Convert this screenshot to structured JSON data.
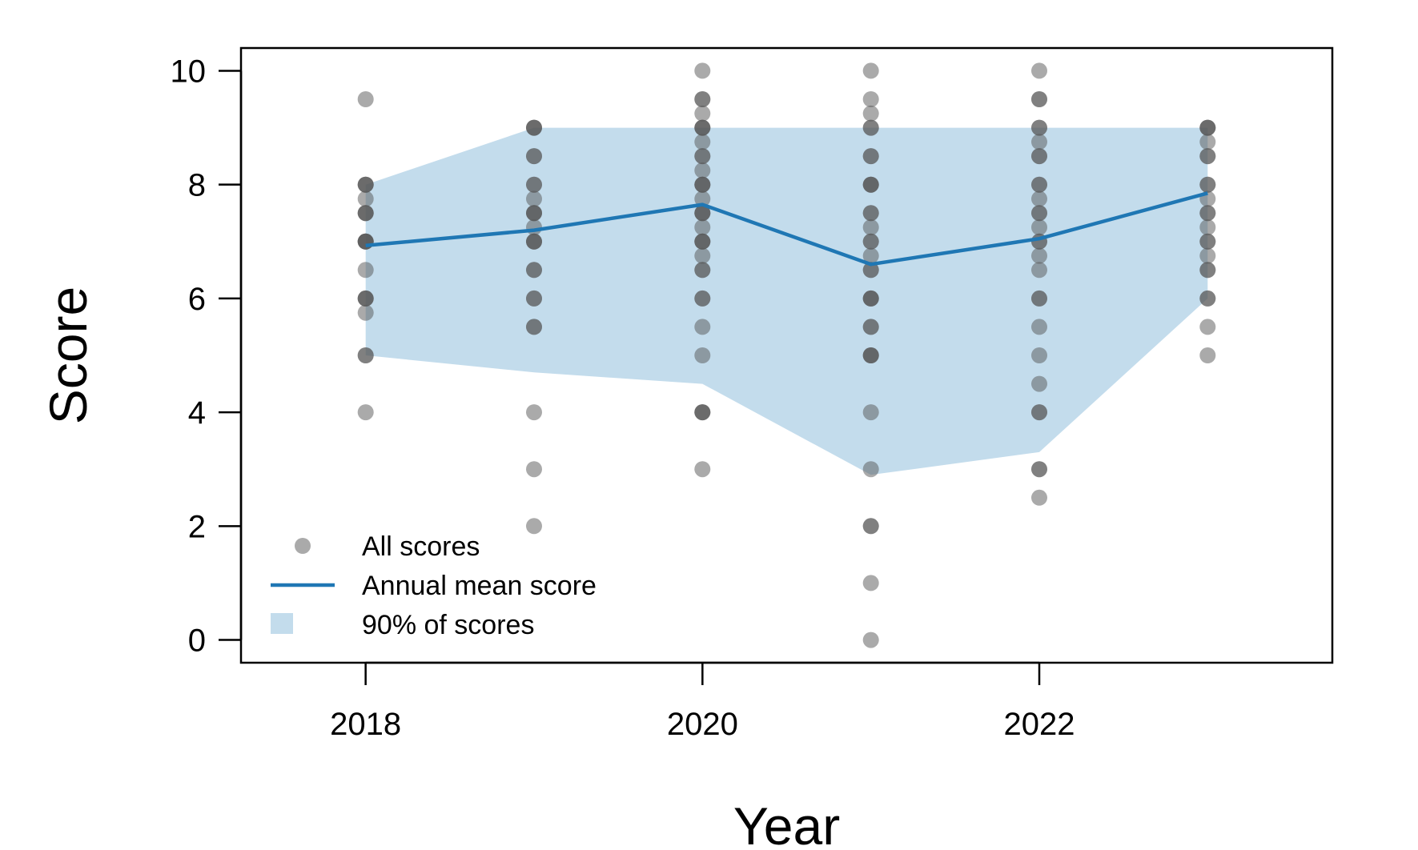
{
  "chart_data": {
    "type": "scatter",
    "xlabel": "Year",
    "ylabel": "Score",
    "xlim": [
      2017.26,
      2023.74
    ],
    "ylim": [
      -0.4,
      10.4
    ],
    "x_ticks": [
      2018,
      2020,
      2022
    ],
    "y_ticks": [
      0,
      2,
      4,
      6,
      8,
      10
    ],
    "grid": false,
    "legend_position": "bottom-left",
    "colors": {
      "points": "#555555",
      "mean_line": "#1f77b4",
      "band": "#c3dcec"
    },
    "legend": [
      {
        "label": "All scores",
        "kind": "point"
      },
      {
        "label": "Annual mean score",
        "kind": "line"
      },
      {
        "label": "90% of scores",
        "kind": "band"
      }
    ],
    "series": [
      {
        "name": "Annual mean score",
        "kind": "line",
        "x": [
          2018,
          2019,
          2020,
          2021,
          2022,
          2023
        ],
        "y": [
          6.93,
          7.2,
          7.65,
          6.6,
          7.05,
          7.85
        ]
      },
      {
        "name": "90% of scores",
        "kind": "band",
        "x": [
          2018,
          2019,
          2020,
          2021,
          2022,
          2023
        ],
        "lower": [
          5.0,
          4.7,
          4.5,
          2.9,
          3.3,
          6.0
        ],
        "upper": [
          8.0,
          9.0,
          9.0,
          9.0,
          9.0,
          9.0
        ]
      },
      {
        "name": "All scores",
        "kind": "points",
        "points": [
          {
            "x": 2018,
            "y": [
              9.5,
              8,
              8,
              8,
              7.75,
              7.5,
              7.5,
              7.5,
              7,
              7,
              7,
              7,
              6.5,
              6,
              6,
              6,
              5.75,
              5,
              5,
              4
            ]
          },
          {
            "x": 2019,
            "y": [
              9,
              9,
              9,
              8.5,
              8.5,
              8,
              8,
              7.75,
              7.5,
              7.5,
              7.5,
              7.25,
              7,
              7,
              7,
              6.5,
              6.5,
              6,
              6,
              5.5,
              5.5,
              4,
              3,
              2
            ]
          },
          {
            "x": 2020,
            "y": [
              10,
              9.5,
              9.5,
              9.25,
              9,
              9,
              9,
              8.75,
              8.5,
              8.5,
              8.25,
              8,
              8,
              8,
              7.75,
              7.5,
              7.5,
              7.5,
              7.25,
              7,
              7,
              7,
              6.75,
              6.5,
              6.5,
              6,
              6,
              5.5,
              5,
              4,
              4,
              4,
              3
            ]
          },
          {
            "x": 2021,
            "y": [
              10,
              9.5,
              9.25,
              9,
              9,
              8.5,
              8.5,
              8,
              8,
              8,
              7.5,
              7.5,
              7.25,
              7,
              7,
              6.75,
              6.5,
              6.5,
              6,
              6,
              6,
              5.5,
              5.5,
              5,
              5,
              5,
              4,
              3,
              2,
              2,
              1,
              0
            ]
          },
          {
            "x": 2022,
            "y": [
              10,
              9.5,
              9.5,
              9,
              9,
              8.75,
              8.5,
              8.5,
              8,
              8,
              7.75,
              7.5,
              7.5,
              7.25,
              7,
              7,
              6.75,
              6.5,
              6,
              6,
              5.5,
              5,
              4.5,
              4,
              4,
              3,
              3,
              2.5
            ]
          },
          {
            "x": 2023,
            "y": [
              9,
              9,
              9,
              8.75,
              8.5,
              8.5,
              8,
              8,
              7.75,
              7.5,
              7.5,
              7.25,
              7,
              7,
              6.75,
              6.5,
              6.5,
              6,
              6,
              5.5,
              5
            ]
          }
        ]
      }
    ]
  }
}
